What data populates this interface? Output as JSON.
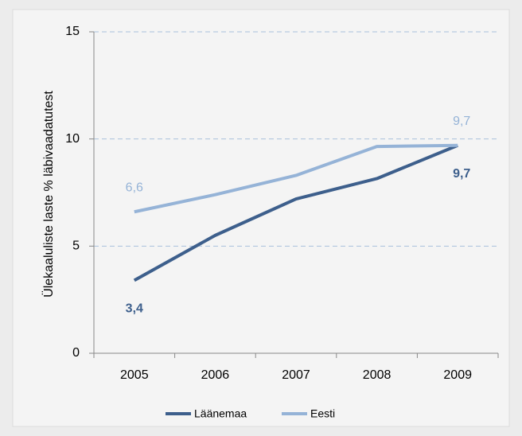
{
  "chart_data": {
    "type": "line",
    "y_label": "Ülekaaluliste laste % läbivaadatutest",
    "categories": [
      "2005",
      "2006",
      "2007",
      "2008",
      "2009"
    ],
    "series": [
      {
        "name": "Läänemaa",
        "color": "#3d5f8c",
        "values": [
          3.4,
          5.5,
          7.2,
          8.15,
          9.7
        ],
        "value_labels": [
          "3,4",
          null,
          null,
          null,
          "9,7"
        ]
      },
      {
        "name": "Eesti",
        "color": "#95b3d7",
        "values": [
          6.6,
          7.4,
          8.3,
          9.65,
          9.7
        ],
        "value_labels": [
          "6,6",
          null,
          null,
          null,
          "9,7"
        ]
      }
    ],
    "ylim": [
      0,
      15
    ],
    "yticks": [
      0,
      5,
      10,
      15
    ],
    "grid": true,
    "legend": "bottom"
  }
}
